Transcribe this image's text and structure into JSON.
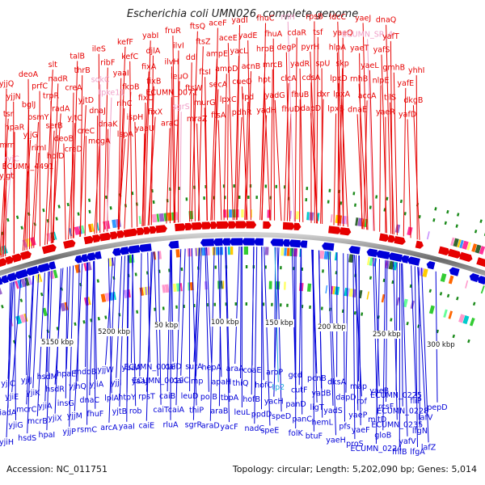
{
  "title": "Escherichia coli UMN026, complete genome",
  "footer": {
    "accession": "Accession: NC_011751",
    "summary": "Topology: circular; Length: 5,202,090 bp; Genes: 5,014"
  },
  "colors": {
    "forward": "#e60000",
    "reverse": "#0000d8",
    "rna_forward": "#f0a0c8",
    "rna_reverse": "#22aadd",
    "backbone": "#808080",
    "tick": "#1a8a1a"
  },
  "kbp_labels": [
    "5150 kbp",
    "5200 kbp",
    "50 kbp",
    "100 kbp",
    "150 kbp",
    "200 kbp",
    "250 kbp",
    "300 kbp"
  ],
  "top_genes": [
    {
      "name": "yjgt",
      "kind": "coding"
    },
    {
      "name": "ryjC",
      "kind": "rna"
    },
    {
      "name": "mrr",
      "kind": "coding"
    },
    {
      "name": "hpaR",
      "kind": "coding"
    },
    {
      "name": "tsr",
      "kind": "coding"
    },
    {
      "name": "yjjN",
      "kind": "coding"
    },
    {
      "name": "yjjQ",
      "kind": "coding"
    },
    {
      "name": "ECUMN_4491",
      "kind": "coding"
    },
    {
      "name": "rimI",
      "kind": "coding"
    },
    {
      "name": "yjjG",
      "kind": "coding"
    },
    {
      "name": "osmY",
      "kind": "coding"
    },
    {
      "name": "bglJ",
      "kind": "coding"
    },
    {
      "name": "prfC",
      "kind": "coding"
    },
    {
      "name": "deoA",
      "kind": "coding"
    },
    {
      "name": "holD",
      "kind": "coding"
    },
    {
      "name": "deoB",
      "kind": "coding"
    },
    {
      "name": "serB",
      "kind": "coding"
    },
    {
      "name": "radA",
      "kind": "coding"
    },
    {
      "name": "trpR",
      "kind": "coding"
    },
    {
      "name": "nadR",
      "kind": "coding"
    },
    {
      "name": "slt",
      "kind": "coding"
    },
    {
      "name": "creD",
      "kind": "coding"
    },
    {
      "name": "creC",
      "kind": "coding"
    },
    {
      "name": "yjtC",
      "kind": "coding"
    },
    {
      "name": "yjtD",
      "kind": "coding"
    },
    {
      "name": "creA",
      "kind": "coding"
    },
    {
      "name": "thrB",
      "kind": "coding"
    },
    {
      "name": "talB",
      "kind": "coding"
    },
    {
      "name": "mogA",
      "kind": "coding"
    },
    {
      "name": "dnaK",
      "kind": "coding"
    },
    {
      "name": "dnaJ",
      "kind": "coding"
    },
    {
      "name": "tpke11",
      "kind": "rna"
    },
    {
      "name": "sokC",
      "kind": "rna"
    },
    {
      "name": "ribF",
      "kind": "coding"
    },
    {
      "name": "ileS",
      "kind": "coding"
    },
    {
      "name": "lspA",
      "kind": "coding"
    },
    {
      "name": "ispH",
      "kind": "coding"
    },
    {
      "name": "rihC",
      "kind": "coding"
    },
    {
      "name": "fkpB",
      "kind": "coding"
    },
    {
      "name": "yaaI",
      "kind": "coding"
    },
    {
      "name": "kefC",
      "kind": "coding"
    },
    {
      "name": "kefF",
      "kind": "coding"
    },
    {
      "name": "yaaU",
      "kind": "coding"
    },
    {
      "name": "fixX",
      "kind": "coding"
    },
    {
      "name": "fixC",
      "kind": "coding"
    },
    {
      "name": "fixB",
      "kind": "coding"
    },
    {
      "name": "fixA",
      "kind": "coding"
    },
    {
      "name": "djlA",
      "kind": "coding"
    },
    {
      "name": "yabI",
      "kind": "coding"
    },
    {
      "name": "araC",
      "kind": "coding"
    },
    {
      "name": "sgrS",
      "kind": "rna"
    },
    {
      "name": "ECUMN_0071",
      "kind": "coding"
    },
    {
      "name": "leuO",
      "kind": "coding"
    },
    {
      "name": "ilvH",
      "kind": "coding"
    },
    {
      "name": "ilvI",
      "kind": "coding"
    },
    {
      "name": "fruR",
      "kind": "coding"
    },
    {
      "name": "mraZ",
      "kind": "coding"
    },
    {
      "name": "murG",
      "kind": "coding"
    },
    {
      "name": "ftsW",
      "kind": "coding"
    },
    {
      "name": "ftsI",
      "kind": "coding"
    },
    {
      "name": "ddl",
      "kind": "coding"
    },
    {
      "name": "ftsZ",
      "kind": "coding"
    },
    {
      "name": "ftsQ",
      "kind": "coding"
    },
    {
      "name": "ftsA",
      "kind": "coding"
    },
    {
      "name": "lpxC",
      "kind": "coding"
    },
    {
      "name": "secA",
      "kind": "coding"
    },
    {
      "name": "ampD",
      "kind": "coding"
    },
    {
      "name": "ampE",
      "kind": "coding"
    },
    {
      "name": "aceE",
      "kind": "coding"
    },
    {
      "name": "aceF",
      "kind": "coding"
    },
    {
      "name": "pdhR",
      "kind": "coding"
    },
    {
      "name": "lpd",
      "kind": "coding"
    },
    {
      "name": "cueO",
      "kind": "coding"
    },
    {
      "name": "acnB",
      "kind": "coding"
    },
    {
      "name": "yacL",
      "kind": "coding"
    },
    {
      "name": "yadE",
      "kind": "coding"
    },
    {
      "name": "yadI",
      "kind": "coding"
    },
    {
      "name": "yadH",
      "kind": "coding"
    },
    {
      "name": "yadG",
      "kind": "coding"
    },
    {
      "name": "hpt",
      "kind": "coding"
    },
    {
      "name": "mrcB",
      "kind": "coding"
    },
    {
      "name": "hrpB",
      "kind": "coding"
    },
    {
      "name": "fhuA",
      "kind": "coding"
    },
    {
      "name": "fhuC",
      "kind": "coding"
    },
    {
      "name": "fhuD",
      "kind": "coding"
    },
    {
      "name": "fhuB",
      "kind": "coding"
    },
    {
      "name": "clcA",
      "kind": "coding"
    },
    {
      "name": "yadR",
      "kind": "coding"
    },
    {
      "name": "degP",
      "kind": "coding"
    },
    {
      "name": "cdaR",
      "kind": "coding"
    },
    {
      "name": "rrlH",
      "kind": "rna"
    },
    {
      "name": "dapD",
      "kind": "coding"
    },
    {
      "name": "dxr",
      "kind": "coding"
    },
    {
      "name": "cdsA",
      "kind": "coding"
    },
    {
      "name": "ispU",
      "kind": "coding"
    },
    {
      "name": "pyrH",
      "kind": "coding"
    },
    {
      "name": "tsf",
      "kind": "coding"
    },
    {
      "name": "rpsB",
      "kind": "coding"
    },
    {
      "name": "lpxB",
      "kind": "coding"
    },
    {
      "name": "lpxA",
      "kind": "coding"
    },
    {
      "name": "lpxD",
      "kind": "coding"
    },
    {
      "name": "skp",
      "kind": "coding"
    },
    {
      "name": "hlpA",
      "kind": "coding"
    },
    {
      "name": "yaeQ",
      "kind": "coding"
    },
    {
      "name": "ldcC",
      "kind": "coding"
    },
    {
      "name": "dnaE",
      "kind": "coding"
    },
    {
      "name": "accA",
      "kind": "coding"
    },
    {
      "name": "rnhB",
      "kind": "coding"
    },
    {
      "name": "yaeL",
      "kind": "coding"
    },
    {
      "name": "yaeT",
      "kind": "coding"
    },
    {
      "name": "ECUMN_SR_4",
      "kind": "rna"
    },
    {
      "name": "yaeJ",
      "kind": "coding"
    },
    {
      "name": "yaeR",
      "kind": "coding"
    },
    {
      "name": "tilS",
      "kind": "coding"
    },
    {
      "name": "nlpE",
      "kind": "coding"
    },
    {
      "name": "gmhB",
      "kind": "coding"
    },
    {
      "name": "yafS",
      "kind": "coding"
    },
    {
      "name": "yafT",
      "kind": "coding"
    },
    {
      "name": "dnaQ",
      "kind": "coding"
    },
    {
      "name": "yafD",
      "kind": "coding"
    },
    {
      "name": "dkgB",
      "kind": "coding"
    },
    {
      "name": "yafE",
      "kind": "coding"
    },
    {
      "name": "yhhI",
      "kind": "coding"
    }
  ],
  "bottom_genes": [
    {
      "name": "yjiC",
      "kind": "coding"
    },
    {
      "name": "yjiE",
      "kind": "coding"
    },
    {
      "name": "iadA",
      "kind": "coding"
    },
    {
      "name": "yjiG",
      "kind": "coding"
    },
    {
      "name": "yjiH",
      "kind": "coding"
    },
    {
      "name": "yjiJ",
      "kind": "coding"
    },
    {
      "name": "yjiK",
      "kind": "coding"
    },
    {
      "name": "mcrC",
      "kind": "coding"
    },
    {
      "name": "mcrB",
      "kind": "coding"
    },
    {
      "name": "hsdS",
      "kind": "coding"
    },
    {
      "name": "hsdM",
      "kind": "coding"
    },
    {
      "name": "hsdR",
      "kind": "coding"
    },
    {
      "name": "yjiA",
      "kind": "coding"
    },
    {
      "name": "yjiX",
      "kind": "coding"
    },
    {
      "name": "hpaI",
      "kind": "coding"
    },
    {
      "name": "hpaE",
      "kind": "coding"
    },
    {
      "name": "yjhQ",
      "kind": "coding"
    },
    {
      "name": "insG",
      "kind": "coding"
    },
    {
      "name": "yjjM",
      "kind": "coding"
    },
    {
      "name": "yjjP",
      "kind": "coding"
    },
    {
      "name": "mdoB",
      "kind": "coding"
    },
    {
      "name": "yjiA",
      "kind": "coding"
    },
    {
      "name": "dnaC",
      "kind": "coding"
    },
    {
      "name": "fhuF",
      "kind": "coding"
    },
    {
      "name": "rsmC",
      "kind": "coding"
    },
    {
      "name": "yjjW",
      "kind": "coding"
    },
    {
      "name": "yjjI",
      "kind": "coding"
    },
    {
      "name": "lplA",
      "kind": "coding"
    },
    {
      "name": "yjtB",
      "kind": "coding"
    },
    {
      "name": "arcA",
      "kind": "coding"
    },
    {
      "name": "yaaA",
      "kind": "coding"
    },
    {
      "name": "yaaJ",
      "kind": "coding"
    },
    {
      "name": "htpY",
      "kind": "coding"
    },
    {
      "name": "rob",
      "kind": "coding"
    },
    {
      "name": "yaaI",
      "kind": "coding"
    },
    {
      "name": "ECUMN_0018",
      "kind": "coding"
    },
    {
      "name": "ECUMN_0019",
      "kind": "coding"
    },
    {
      "name": "rpsT",
      "kind": "coding"
    },
    {
      "name": "caiT",
      "kind": "coding"
    },
    {
      "name": "caiE",
      "kind": "coding"
    },
    {
      "name": "caiD",
      "kind": "coding"
    },
    {
      "name": "caiC",
      "kind": "coding"
    },
    {
      "name": "caiB",
      "kind": "coding"
    },
    {
      "name": "caiA",
      "kind": "coding"
    },
    {
      "name": "rluA",
      "kind": "coding"
    },
    {
      "name": "surA",
      "kind": "coding"
    },
    {
      "name": "imp",
      "kind": "coding"
    },
    {
      "name": "leuD",
      "kind": "coding"
    },
    {
      "name": "thiP",
      "kind": "coding"
    },
    {
      "name": "sgrR",
      "kind": "coding"
    },
    {
      "name": "hepA",
      "kind": "coding"
    },
    {
      "name": "apaH",
      "kind": "coding"
    },
    {
      "name": "polB",
      "kind": "coding"
    },
    {
      "name": "araB",
      "kind": "coding"
    },
    {
      "name": "araD",
      "kind": "coding"
    },
    {
      "name": "araA",
      "kind": "coding"
    },
    {
      "name": "thiQ",
      "kind": "coding"
    },
    {
      "name": "tbpA",
      "kind": "coding"
    },
    {
      "name": "leuL",
      "kind": "coding"
    },
    {
      "name": "yacF",
      "kind": "coding"
    },
    {
      "name": "coaE",
      "kind": "coding"
    },
    {
      "name": "hofC",
      "kind": "coding"
    },
    {
      "name": "hofB",
      "kind": "coding"
    },
    {
      "name": "ppdD",
      "kind": "coding"
    },
    {
      "name": "nadC",
      "kind": "coding"
    },
    {
      "name": "aroP",
      "kind": "coding"
    },
    {
      "name": "tp2",
      "kind": "rna"
    },
    {
      "name": "yacH",
      "kind": "coding"
    },
    {
      "name": "speD",
      "kind": "coding"
    },
    {
      "name": "speE",
      "kind": "coding"
    },
    {
      "name": "gcd",
      "kind": "coding"
    },
    {
      "name": "cutF",
      "kind": "coding"
    },
    {
      "name": "panD",
      "kind": "coding"
    },
    {
      "name": "panC",
      "kind": "coding"
    },
    {
      "name": "folK",
      "kind": "coding"
    },
    {
      "name": "pcnB",
      "kind": "coding"
    },
    {
      "name": "yadB",
      "kind": "coding"
    },
    {
      "name": "ligT",
      "kind": "coding"
    },
    {
      "name": "hemL",
      "kind": "coding"
    },
    {
      "name": "btuF",
      "kind": "coding"
    },
    {
      "name": "dksA",
      "kind": "coding"
    },
    {
      "name": "dapD",
      "kind": "coding"
    },
    {
      "name": "yadS",
      "kind": "coding"
    },
    {
      "name": "pfs",
      "kind": "coding"
    },
    {
      "name": "yaeH",
      "kind": "coding"
    },
    {
      "name": "map",
      "kind": "coding"
    },
    {
      "name": "rof",
      "kind": "coding"
    },
    {
      "name": "yaeP",
      "kind": "coding"
    },
    {
      "name": "yaeF",
      "kind": "coding"
    },
    {
      "name": "proS",
      "kind": "coding"
    },
    {
      "name": "yaeB",
      "kind": "coding"
    },
    {
      "name": "rcsF",
      "kind": "coding"
    },
    {
      "name": "mltD",
      "kind": "coding"
    },
    {
      "name": "gloB",
      "kind": "coding"
    },
    {
      "name": "ECUMN_0224",
      "kind": "coding"
    },
    {
      "name": "ECUMN_0225",
      "kind": "coding"
    },
    {
      "name": "ECUMN_0228",
      "kind": "coding"
    },
    {
      "name": "ECUMN_0235",
      "kind": "coding"
    },
    {
      "name": "yafV",
      "kind": "coding"
    },
    {
      "name": "fhiB",
      "kind": "coding"
    },
    {
      "name": "fliP",
      "kind": "coding"
    },
    {
      "name": "lafV",
      "kind": "coding"
    },
    {
      "name": "lfgN",
      "kind": "coding"
    },
    {
      "name": "lafZ",
      "kind": "coding"
    },
    {
      "name": "lfgA",
      "kind": "coding"
    },
    {
      "name": "pepD",
      "kind": "coding"
    }
  ]
}
